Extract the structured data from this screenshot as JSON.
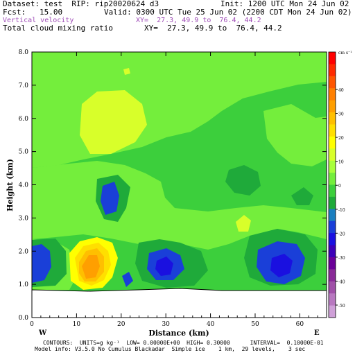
{
  "header": {
    "dataset": "Dataset: test  RIP: rip20020624 d3",
    "init": "Init: 1200 UTC Mon 24 Jun 02",
    "fcst": "Fcst:   15.00",
    "valid": "Valid: 0300 UTC Tue 25 Jun 02 (2200 CDT Mon 24 Jun 02)",
    "var1": "Vertical velocity",
    "xy1": "XY=  27.3, 49.9 to  76.4, 44.2",
    "var2": "Total cloud mixing ratio",
    "xy2": "XY=  27.3, 49.9 to  76.4, 44.2"
  },
  "footer": {
    "contours": "CONTOURS:  UNITS=g kg⁻¹  LOW= 0.00000E+00  HIGH= 0.30000      INTERVAL=  0.10000E-01",
    "model": "Model info: V3.5.0 No Cumulus Blackadar  Simple ice    1 km,  29 levels,    3 sec"
  },
  "chart_data": {
    "type": "heatmap",
    "xlabel": "Distance (km)",
    "ylabel": "Height (km)",
    "xlim": [
      0,
      66
    ],
    "ylim": [
      0,
      8
    ],
    "x_ticks": [
      "0",
      "10",
      "20",
      "30",
      "40",
      "50",
      "60"
    ],
    "y_ticks": [
      "0.0",
      "1.0",
      "2.0",
      "3.0",
      "4.0",
      "5.0",
      "6.0",
      "7.0",
      "8.0"
    ],
    "left_end_label": "W",
    "right_end_label": "E",
    "colorbar": {
      "units": "cm s⁻¹",
      "labels": [
        "40",
        "30",
        "20",
        "10",
        "0",
        "-10",
        "-20",
        "-30",
        "-40",
        "-50"
      ],
      "colors": [
        "#ff0000",
        "#ff2a00",
        "#ff5500",
        "#ff7f00",
        "#ff9f00",
        "#ffbf00",
        "#ffdf00",
        "#ffff00",
        "#d8ff2a",
        "#a8ff3a",
        "#74ee3c",
        "#3ccf3c",
        "#1faa3a",
        "#1a7fbf",
        "#1a3fd8",
        "#1a10e0",
        "#3c00b8",
        "#6a0098",
        "#8a2a98",
        "#a050a8",
        "#b878c0",
        "#cfa0d8"
      ]
    },
    "terrain_height_km": 1.0
  }
}
